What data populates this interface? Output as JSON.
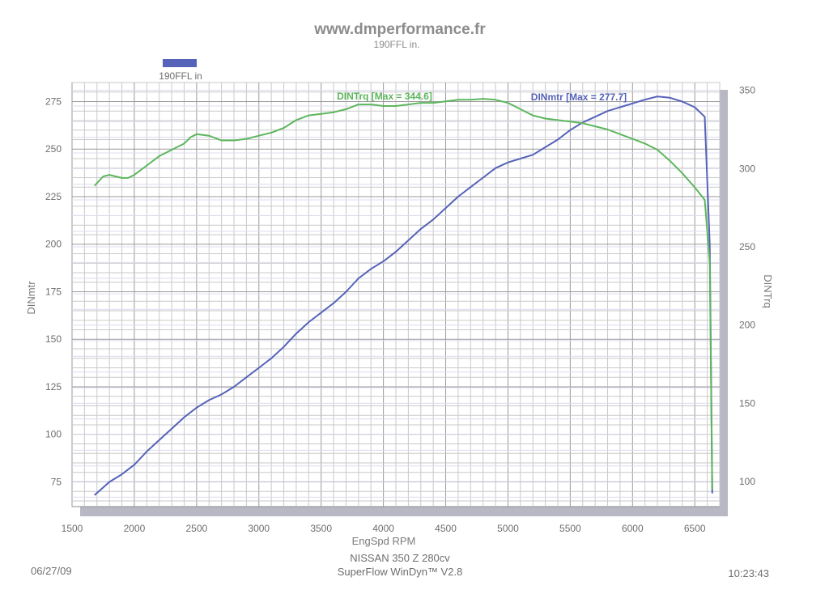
{
  "header": {
    "title": "www.dmperformance.fr",
    "subtitle": "190FFL in."
  },
  "legend": {
    "label": "190FFL in",
    "color": "#5563b9"
  },
  "footer": {
    "date": "06/27/09",
    "vehicle": "NISSAN 350 Z 280cv",
    "software": "SuperFlow WinDyn™ V2.8",
    "time": "10:23:43"
  },
  "chart_data": {
    "type": "line",
    "xlabel": "EngSpd  RPM",
    "ylabel_left": "DINmtr",
    "ylabel_right": "DINTrq",
    "xlim": [
      1500,
      6700
    ],
    "ylim_left": [
      62,
      285
    ],
    "ylim_right": [
      84,
      355
    ],
    "x_ticks": [
      1500,
      2000,
      2500,
      3000,
      3500,
      4000,
      4500,
      5000,
      5500,
      6000,
      6500
    ],
    "y_ticks_left": [
      75,
      100,
      125,
      150,
      175,
      200,
      225,
      250,
      275
    ],
    "y_ticks_right": [
      100,
      150,
      200,
      250,
      300,
      350
    ],
    "grid": true,
    "series": [
      {
        "name": "DINmtr",
        "axis": "left",
        "annotation": "DINmtr [Max = 277.7]",
        "color": "#5563b9",
        "points": [
          [
            1680,
            68
          ],
          [
            1800,
            75
          ],
          [
            1900,
            79
          ],
          [
            2000,
            84
          ],
          [
            2100,
            91
          ],
          [
            2200,
            97
          ],
          [
            2300,
            103
          ],
          [
            2400,
            109
          ],
          [
            2500,
            114
          ],
          [
            2600,
            118
          ],
          [
            2700,
            121
          ],
          [
            2800,
            125
          ],
          [
            2900,
            130
          ],
          [
            3000,
            135
          ],
          [
            3100,
            140
          ],
          [
            3200,
            146
          ],
          [
            3300,
            153
          ],
          [
            3400,
            159
          ],
          [
            3500,
            164
          ],
          [
            3600,
            169
          ],
          [
            3700,
            175
          ],
          [
            3800,
            182
          ],
          [
            3900,
            187
          ],
          [
            4000,
            191
          ],
          [
            4100,
            196
          ],
          [
            4200,
            202
          ],
          [
            4300,
            208
          ],
          [
            4400,
            213
          ],
          [
            4500,
            219
          ],
          [
            4600,
            225
          ],
          [
            4700,
            230
          ],
          [
            4800,
            235
          ],
          [
            4900,
            240
          ],
          [
            5000,
            243
          ],
          [
            5100,
            245
          ],
          [
            5200,
            247
          ],
          [
            5300,
            251
          ],
          [
            5400,
            255
          ],
          [
            5500,
            260
          ],
          [
            5600,
            264
          ],
          [
            5700,
            267
          ],
          [
            5800,
            270
          ],
          [
            5900,
            272
          ],
          [
            6000,
            274
          ],
          [
            6100,
            276
          ],
          [
            6200,
            277.7
          ],
          [
            6300,
            277
          ],
          [
            6400,
            275
          ],
          [
            6500,
            272
          ],
          [
            6580,
            267
          ],
          [
            6620,
            200
          ],
          [
            6640,
            69
          ]
        ]
      },
      {
        "name": "DINTrq",
        "axis": "right",
        "annotation": "DINTrq [Max = 344.6]",
        "color": "#5db65d",
        "points": [
          [
            1680,
            289
          ],
          [
            1750,
            295
          ],
          [
            1800,
            296
          ],
          [
            1850,
            295
          ],
          [
            1900,
            294
          ],
          [
            1950,
            294
          ],
          [
            2000,
            296
          ],
          [
            2100,
            302
          ],
          [
            2200,
            308
          ],
          [
            2300,
            312
          ],
          [
            2400,
            316
          ],
          [
            2450,
            320
          ],
          [
            2500,
            322
          ],
          [
            2600,
            321
          ],
          [
            2700,
            318
          ],
          [
            2800,
            318
          ],
          [
            2900,
            319
          ],
          [
            3000,
            321
          ],
          [
            3100,
            323
          ],
          [
            3200,
            326
          ],
          [
            3300,
            331
          ],
          [
            3400,
            334
          ],
          [
            3500,
            335
          ],
          [
            3600,
            336
          ],
          [
            3700,
            338
          ],
          [
            3800,
            341
          ],
          [
            3900,
            341
          ],
          [
            4000,
            340
          ],
          [
            4100,
            340
          ],
          [
            4200,
            341
          ],
          [
            4300,
            342
          ],
          [
            4400,
            342
          ],
          [
            4500,
            343
          ],
          [
            4600,
            344
          ],
          [
            4700,
            344
          ],
          [
            4800,
            344.6
          ],
          [
            4900,
            344
          ],
          [
            5000,
            342
          ],
          [
            5100,
            338
          ],
          [
            5200,
            334
          ],
          [
            5300,
            332
          ],
          [
            5400,
            331
          ],
          [
            5500,
            330
          ],
          [
            5600,
            329
          ],
          [
            5700,
            327
          ],
          [
            5800,
            325
          ],
          [
            5900,
            322
          ],
          [
            6000,
            319
          ],
          [
            6100,
            316
          ],
          [
            6200,
            312
          ],
          [
            6300,
            305
          ],
          [
            6400,
            297
          ],
          [
            6500,
            288
          ],
          [
            6580,
            280
          ],
          [
            6620,
            240
          ],
          [
            6640,
            95
          ]
        ]
      }
    ]
  }
}
